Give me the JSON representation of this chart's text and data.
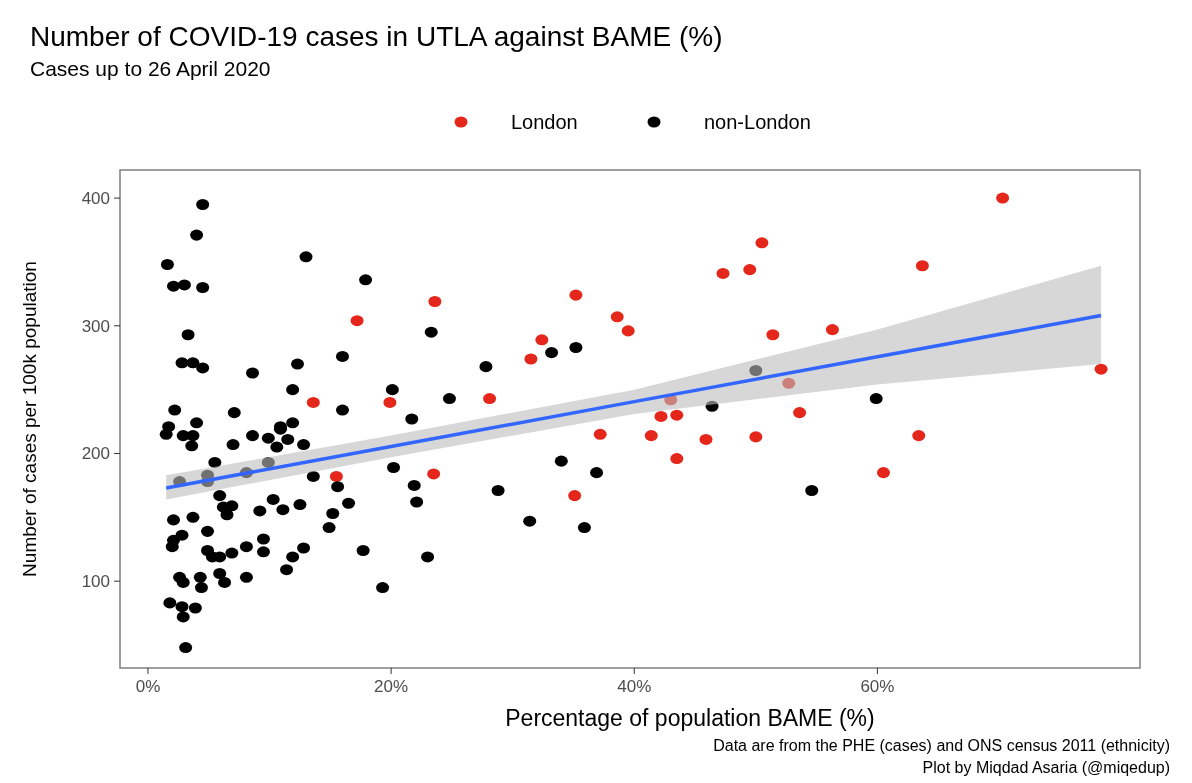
{
  "chart_data": {
    "type": "scatter",
    "title": "Number of COVID-19 cases in UTLA against BAME (%)",
    "subtitle": "Cases up to 26 April 2020",
    "xlabel": "Percentage of population BAME (%)",
    "ylabel": "Number of cases per 100k population",
    "annotations": [
      "Data are from the PHE (cases) and ONS census 2011 (ethnicity)",
      "Plot by Miqdad Asaria (@miqedup)"
    ],
    "xlim": [
      -2.3,
      81.6
    ],
    "ylim": [
      32,
      422
    ],
    "xticks": [
      {
        "value": 0,
        "label": "0%"
      },
      {
        "value": 20,
        "label": "20%"
      },
      {
        "value": 40,
        "label": "40%"
      },
      {
        "value": 60,
        "label": "60%"
      }
    ],
    "yticks": [
      100,
      200,
      300,
      400
    ],
    "grid": false,
    "legend": "top",
    "marker": "circle",
    "series": [
      {
        "name": "London",
        "color": "#e4261b",
        "x": [
          70.3,
          63.7,
          51.4,
          56.3,
          52.7,
          53.6,
          63.4,
          60.5,
          78.4,
          50.5,
          47.3,
          49.5,
          23.6,
          35.2,
          38.6,
          39.5,
          32.4,
          31.5,
          28.1,
          43.0,
          42.2,
          43.5,
          37.2,
          41.4,
          45.9,
          50.0,
          43.5,
          23.5,
          35.1,
          17.2,
          13.6,
          19.9,
          15.5
        ],
        "values": [
          400,
          347,
          293,
          297,
          255,
          232,
          214,
          185,
          266,
          365,
          341,
          344,
          319,
          324,
          307,
          296,
          289,
          274,
          243,
          242,
          229,
          230,
          215,
          214,
          211,
          213,
          196,
          184,
          167,
          304,
          240,
          240,
          182
        ]
      },
      {
        "name": "non-London",
        "color": "#000000",
        "x": [
          59.9,
          54.6,
          23.3,
          33.2,
          35.2,
          27.8,
          50.0,
          24.8,
          21.7,
          46.4,
          34.0,
          36.9,
          21.9,
          28.8,
          22.1,
          31.4,
          35.9,
          23.0,
          4.5,
          4.0,
          1.6,
          13.0,
          2.1,
          3.0,
          4.5,
          17.9,
          3.3,
          2.8,
          3.7,
          4.5,
          8.6,
          12.3,
          16.0,
          11.9,
          20.1,
          16.0,
          2.2,
          1.7,
          4.0,
          7.1,
          10.9,
          11.9,
          1.5,
          2.9,
          3.7,
          3.6,
          7.0,
          8.6,
          9.9,
          10.9,
          10.6,
          11.5,
          12.8,
          5.5,
          2.6,
          4.9,
          4.9,
          8.1,
          9.9,
          13.6,
          15.6,
          20.2,
          5.9,
          6.2,
          6.9,
          6.5,
          9.2,
          10.3,
          11.1,
          12.5,
          16.5,
          15.2,
          14.9,
          2.1,
          3.7,
          4.9,
          2.8,
          2.1,
          2.0,
          4.9,
          5.3,
          5.9,
          6.9,
          8.1,
          9.5,
          9.5,
          11.9,
          12.8,
          11.4,
          17.7,
          19.3,
          2.6,
          2.9,
          4.3,
          4.4,
          5.9,
          6.3,
          8.1,
          1.8,
          2.8,
          3.9,
          2.9,
          3.1
        ],
        "values": [
          243,
          171,
          295,
          279,
          283,
          268,
          265,
          243,
          227,
          237,
          194,
          185,
          175,
          171,
          162,
          147,
          142,
          119,
          395,
          371,
          348,
          354,
          331,
          332,
          330,
          336,
          293,
          271,
          271,
          267,
          263,
          270,
          276,
          250,
          250,
          234,
          234,
          221,
          224,
          232,
          221,
          224,
          215,
          214,
          214,
          206,
          207,
          214,
          212,
          219,
          205,
          211,
          207,
          193,
          178,
          178,
          183,
          185,
          193,
          182,
          174,
          189,
          167,
          158,
          159,
          152,
          155,
          164,
          156,
          160,
          161,
          153,
          142,
          148,
          150,
          139,
          136,
          132,
          127,
          124,
          119,
          119,
          122,
          127,
          133,
          123,
          119,
          126,
          109,
          124,
          95,
          103,
          99,
          103,
          95,
          106,
          99,
          103,
          83,
          80,
          79,
          72,
          48
        ]
      },
      {
        "type": "line",
        "marker": "none",
        "color": "#3366ff",
        "x": [
          1.5,
          20,
          40,
          60,
          78.4
        ],
        "values": [
          173,
          205.5,
          240.6,
          275.7,
          308
        ],
        "lower": [
          164,
          197,
          231,
          254,
          270
        ],
        "upper": [
          183,
          214,
          250,
          297,
          347
        ]
      }
    ]
  }
}
